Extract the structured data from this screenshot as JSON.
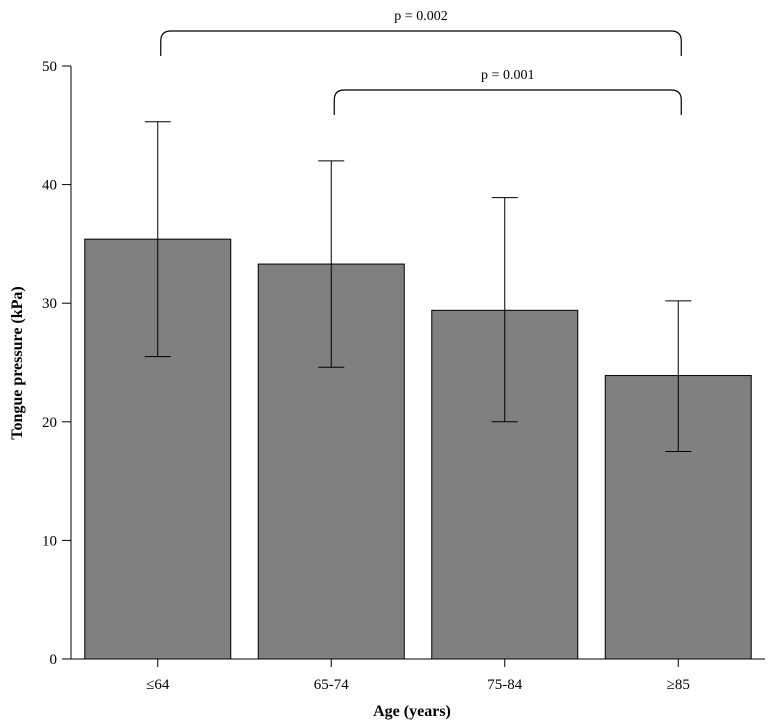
{
  "chart_data": {
    "type": "bar",
    "title": "",
    "xlabel": "Age (years)",
    "ylabel": "Tongue pressure (kPa)",
    "ylim": [
      0,
      50
    ],
    "yticks": [
      "0",
      "10",
      "20",
      "30",
      "40",
      "50"
    ],
    "categories": [
      "≤64",
      "65-74",
      "75-84",
      "≥85"
    ],
    "values": [
      35.4,
      33.3,
      29.4,
      23.9
    ],
    "error_low": [
      25.5,
      24.6,
      20.0,
      17.5
    ],
    "error_high": [
      45.3,
      42.0,
      38.9,
      30.2
    ],
    "grid": false,
    "colors": {
      "bar": "#808080",
      "bar_stroke": "#000000"
    },
    "annotations": [
      {
        "text": "p = 0.002",
        "from": "≤64",
        "to": "≥85"
      },
      {
        "text": "p = 0.001",
        "from": "65-74",
        "to": "≥85"
      }
    ]
  }
}
